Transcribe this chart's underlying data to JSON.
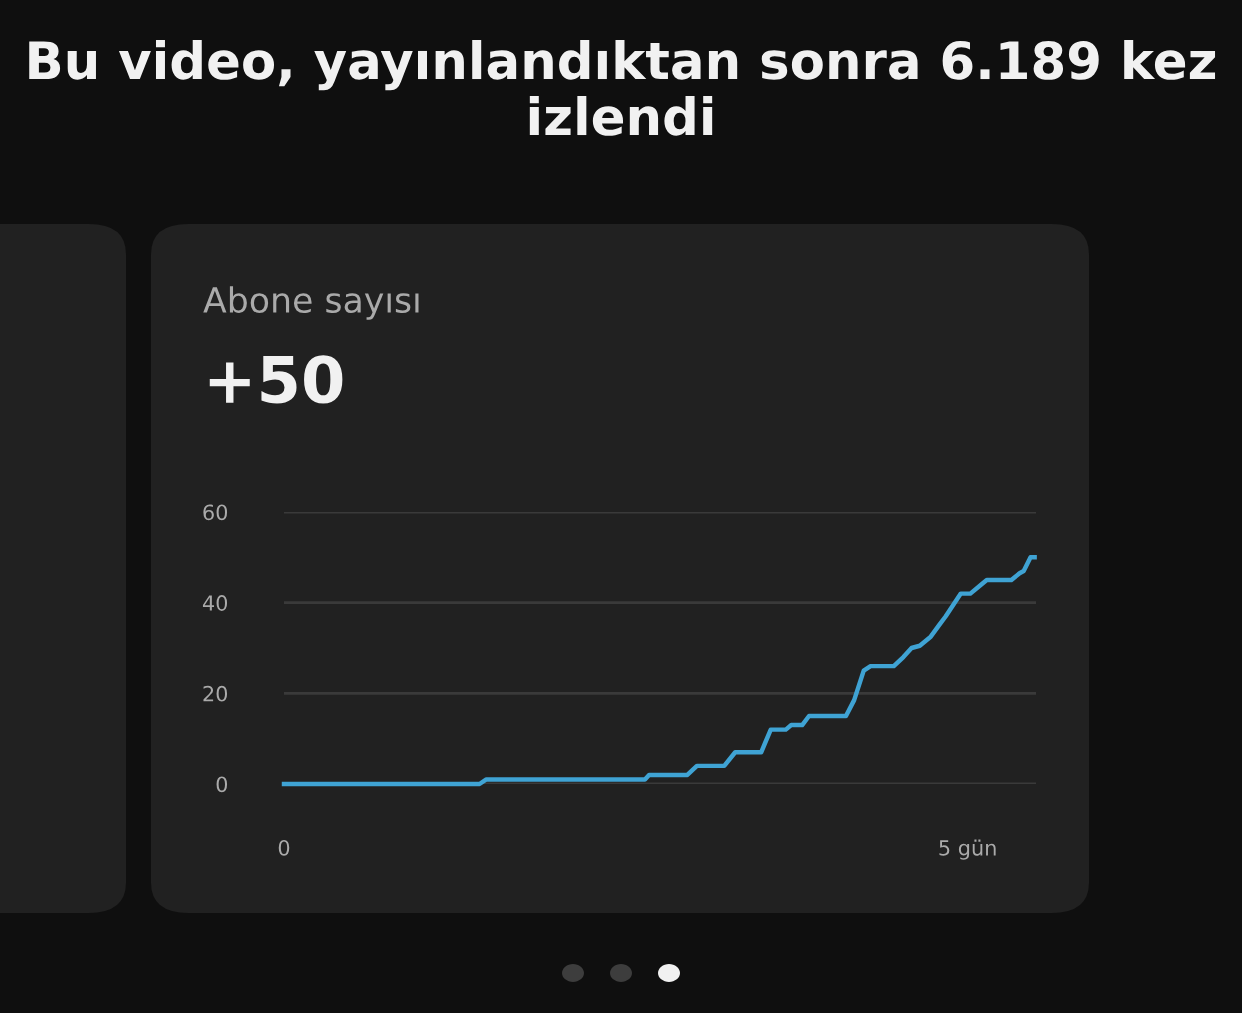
{
  "chart_data": {
    "type": "line",
    "title": "Bu video, yayınlandıktan sonra 6.189 kez izlendi",
    "subtitle": "Abone sayısı",
    "annotations": [
      "+50"
    ],
    "x": [
      0,
      1.43,
      1.48,
      2.64,
      2.67,
      2.95,
      3.02,
      3.22,
      3.3,
      3.49,
      3.56,
      3.67,
      3.71,
      3.79,
      3.84,
      4.11,
      4.17,
      4.24,
      4.29,
      4.46,
      4.53,
      4.59,
      4.65,
      4.73,
      4.79,
      4.84,
      4.95,
      5.02,
      5.1,
      5.14,
      5.32,
      5.38,
      5.41,
      5.46,
      5.49
    ],
    "series": [
      {
        "color": "#3fa3d4",
        "values": [
          0,
          0,
          1,
          1,
          2,
          2,
          4,
          4,
          7,
          7,
          12,
          12,
          13,
          13,
          15,
          15,
          18.5,
          25,
          26,
          26,
          28,
          30,
          30.5,
          32.5,
          35,
          37,
          42,
          42,
          44,
          45,
          45,
          46.5,
          47,
          50,
          50
        ]
      }
    ],
    "xlim": [
      0,
      5.5
    ],
    "xticks": [
      0,
      {
        "value": 5,
        "label": "5 gün"
      }
    ],
    "ylim": [
      0,
      60
    ],
    "yticks": [
      0,
      20,
      40,
      60
    ],
    "grid": "y",
    "legend": false,
    "marker": "none",
    "line_style": "solid"
  }
}
